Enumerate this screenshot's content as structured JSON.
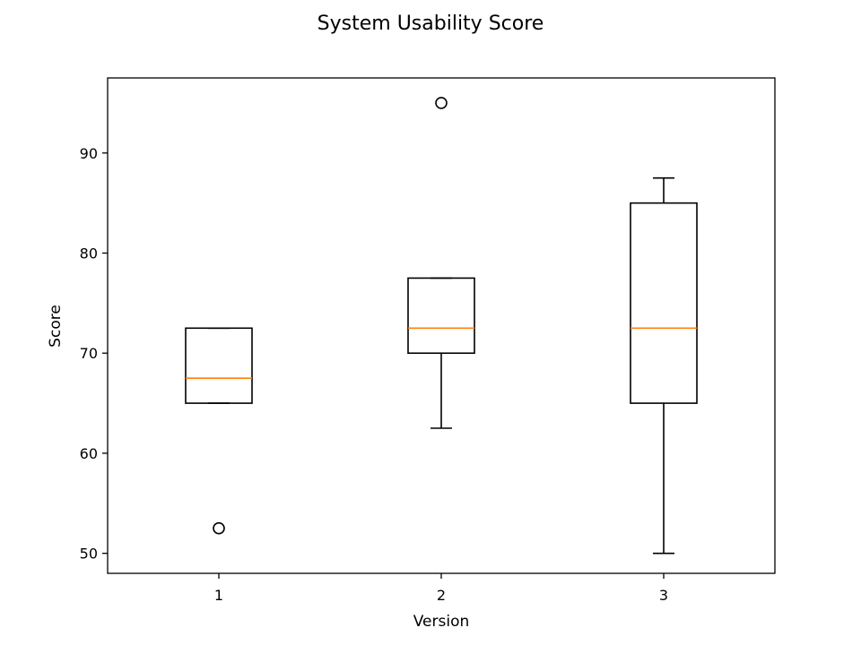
{
  "chart_data": {
    "type": "box",
    "title": "System Usability Score",
    "xlabel": "Version",
    "ylabel": "Score",
    "categories": [
      "1",
      "2",
      "3"
    ],
    "ylim": [
      48,
      97.5
    ],
    "yticks": [
      50,
      60,
      70,
      80,
      90
    ],
    "grid": false,
    "median_color": "#ff7f0e",
    "boxes": [
      {
        "category": "1",
        "whisker_low": 65,
        "q1": 65,
        "median": 67.5,
        "q3": 72.5,
        "whisker_high": 72.5,
        "fliers": [
          52.5
        ]
      },
      {
        "category": "2",
        "whisker_low": 62.5,
        "q1": 70,
        "median": 72.5,
        "q3": 77.5,
        "whisker_high": 77.5,
        "fliers": [
          95
        ]
      },
      {
        "category": "3",
        "whisker_low": 50,
        "q1": 65,
        "median": 72.5,
        "q3": 85,
        "whisker_high": 87.5,
        "fliers": []
      }
    ]
  }
}
